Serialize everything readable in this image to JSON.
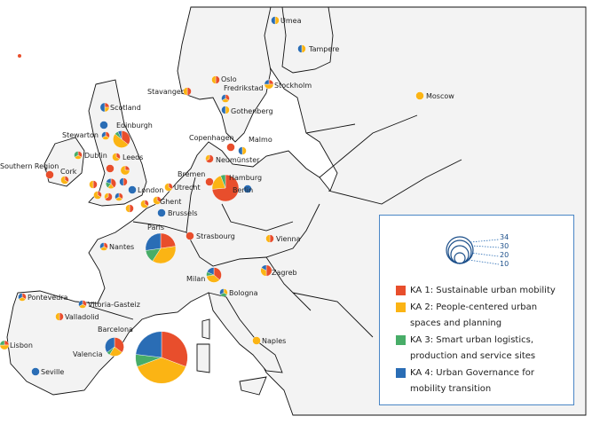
{
  "colors": {
    "ka1": "#e84e2c",
    "ka2": "#fbb414",
    "ka3": "#48ad68",
    "ka4": "#2a6db5",
    "land": "#f3f3f3",
    "border": "#111111",
    "legend_border": "#4a86c5"
  },
  "legend": {
    "size_scale": [
      "34",
      "30",
      "20",
      "10"
    ],
    "items": [
      {
        "key": "ka1",
        "label": "KA 1: Sustainable urban mobility"
      },
      {
        "key": "ka2",
        "label": "KA 2: People-centered urban spaces and planning"
      },
      {
        "key": "ka3",
        "label": "KA 3: Smart urban logistics, production and service sites"
      },
      {
        "key": "ka4",
        "label": "KA 4: Urban Governance for mobility transition"
      }
    ]
  },
  "cities": [
    {
      "name": "Umea",
      "ka": [
        0,
        1,
        0,
        1
      ]
    },
    {
      "name": "Tampere",
      "ka": [
        0,
        1,
        0,
        1
      ]
    },
    {
      "name": "Oslo",
      "ka": [
        1,
        1,
        0,
        0
      ]
    },
    {
      "name": "Stavanger",
      "ka": [
        1,
        1,
        0,
        0
      ]
    },
    {
      "name": "Fredrikstad",
      "ka": [
        1,
        1,
        0,
        1
      ]
    },
    {
      "name": "Stockholm",
      "ka": [
        1,
        2,
        0,
        1
      ]
    },
    {
      "name": "Moscow",
      "ka": [
        0,
        1,
        0,
        0
      ]
    },
    {
      "name": "Gothenberg",
      "ka": [
        0,
        1,
        0,
        1
      ]
    },
    {
      "name": "Scotland",
      "ka": [
        1,
        1,
        0,
        2
      ]
    },
    {
      "name": "Edinburgh",
      "ka": [
        0,
        0,
        0,
        1
      ]
    },
    {
      "name": "",
      "ka": [
        5,
        7,
        1,
        1
      ]
    },
    {
      "name": "Stewarton",
      "ka": [
        1,
        1,
        0,
        1
      ]
    },
    {
      "name": "Dublin",
      "ka": [
        1,
        1,
        1,
        0
      ]
    },
    {
      "name": "Leeds",
      "ka": [
        1,
        2,
        0,
        0
      ]
    },
    {
      "name": "Southern Region",
      "ka": [
        1,
        0,
        0,
        0
      ]
    },
    {
      "name": "Cork",
      "ka": [
        1,
        2,
        0,
        0
      ]
    },
    {
      "name": "",
      "ka": [
        1,
        0,
        0,
        0
      ]
    },
    {
      "name": "",
      "ka": [
        1,
        3,
        0,
        0
      ]
    },
    {
      "name": "",
      "ka": [
        1,
        1,
        0,
        0
      ]
    },
    {
      "name": "",
      "ka": [
        2,
        1,
        1,
        1
      ]
    },
    {
      "name": "",
      "ka": [
        1,
        0,
        0,
        1
      ]
    },
    {
      "name": "London",
      "ka": [
        0,
        0,
        0,
        1
      ]
    },
    {
      "name": "",
      "ka": [
        1,
        2,
        0,
        0
      ]
    },
    {
      "name": "",
      "ka": [
        2,
        1,
        0,
        0
      ]
    },
    {
      "name": "",
      "ka": [
        1,
        1,
        0,
        1
      ]
    },
    {
      "name": "",
      "ka": [
        1,
        1,
        0,
        0
      ]
    },
    {
      "name": "",
      "ka": [
        1,
        2,
        0,
        0
      ]
    },
    {
      "name": "Ghent",
      "ka": [
        1,
        2,
        0,
        0
      ]
    },
    {
      "name": "Utrecht",
      "ka": [
        1,
        2,
        0,
        0
      ]
    },
    {
      "name": "Brussels",
      "ka": [
        0,
        0,
        0,
        1
      ]
    },
    {
      "name": "Copenhagen",
      "ka": [
        1,
        0,
        0,
        0
      ]
    },
    {
      "name": "Malmo",
      "ka": [
        0,
        1,
        0,
        1
      ]
    },
    {
      "name": "Neumünster",
      "ka": [
        2,
        1,
        0,
        0
      ]
    },
    {
      "name": "Bremen",
      "ka": [
        1,
        0,
        0,
        0
      ]
    },
    {
      "name": "Hamburg",
      "ka": [
        0,
        0,
        0,
        0
      ]
    },
    {
      "name": "Berlin",
      "ka": [
        25,
        7,
        2,
        0
      ]
    },
    {
      "name": "",
      "ka": [
        0,
        0,
        0,
        1
      ]
    },
    {
      "name": "Strasbourg",
      "ka": [
        1,
        0,
        0,
        0
      ]
    },
    {
      "name": "Vienna",
      "ka": [
        1,
        1,
        0,
        0
      ]
    },
    {
      "name": "Paris",
      "ka": [
        10,
        16,
        6,
        12
      ]
    },
    {
      "name": "Nantes",
      "ka": [
        1,
        1,
        0,
        1
      ]
    },
    {
      "name": "Milan",
      "ka": [
        4,
        4,
        1,
        2
      ]
    },
    {
      "name": "Bologna",
      "ka": [
        0,
        1,
        1,
        1
      ]
    },
    {
      "name": "Zagreb",
      "ka": [
        3,
        2,
        0,
        1
      ]
    },
    {
      "name": "Pontevedra",
      "ka": [
        1,
        1,
        0,
        1
      ]
    },
    {
      "name": "Vitoria-Gasteiz",
      "ka": [
        1,
        1,
        0,
        1
      ]
    },
    {
      "name": "Valladolid",
      "ka": [
        1,
        1,
        0,
        0
      ]
    },
    {
      "name": "Barcelona",
      "ka": [
        6,
        4,
        1,
        6
      ]
    },
    {
      "name": "Valencia",
      "ka": [
        0,
        0,
        0,
        0
      ]
    },
    {
      "name": "",
      "ka": [
        40,
        50,
        10,
        30
      ]
    },
    {
      "name": "Lisbon",
      "ka": [
        1,
        2,
        1,
        0
      ]
    },
    {
      "name": "Seville",
      "ka": [
        0,
        0,
        0,
        1
      ]
    },
    {
      "name": "Naples",
      "ka": [
        0,
        1,
        0,
        0
      ]
    }
  ]
}
